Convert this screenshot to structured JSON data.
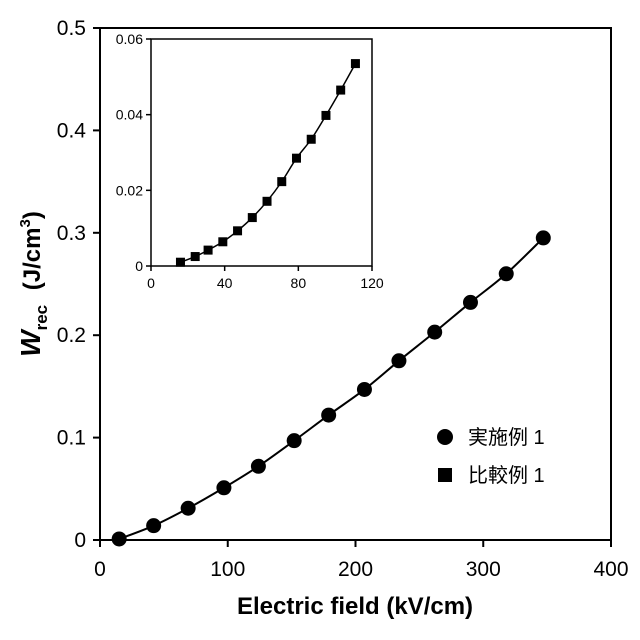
{
  "chart_data": [
    {
      "type": "scatter",
      "title": "",
      "xlabel": "Electric field   (kV/cm)",
      "ylabel": {
        "symbol": "W",
        "subscript": "rec",
        "unit_prefix": "(J/cm",
        "unit_power": "3",
        "unit_suffix": ")"
      },
      "xlim": [
        0,
        400
      ],
      "ylim": [
        0,
        0.5
      ],
      "x_ticks": [
        "0",
        "100",
        "200",
        "300",
        "400"
      ],
      "y_ticks": [
        "0",
        "0.1",
        "0.2",
        "0.3",
        "0.4",
        "0.5"
      ],
      "grid": false,
      "legend_position": "right",
      "series": [
        {
          "name": "実施例 1",
          "marker": "circle",
          "x": [
            15,
            42,
            69,
            97,
            124,
            152,
            179,
            207,
            234,
            262,
            290,
            318,
            347
          ],
          "y": [
            0.001,
            0.014,
            0.031,
            0.051,
            0.072,
            0.097,
            0.122,
            0.147,
            0.175,
            0.203,
            0.232,
            0.26,
            0.295
          ]
        },
        {
          "name": "比較例 1",
          "marker": "square",
          "x": [],
          "y": []
        }
      ],
      "line_color": "#000000"
    },
    {
      "type": "scatter",
      "title": "",
      "xlabel": "",
      "ylabel": "",
      "xlim": [
        0,
        120
      ],
      "ylim": [
        0,
        0.06
      ],
      "x_ticks": [
        "0",
        "40",
        "80",
        "120"
      ],
      "y_ticks": [
        "0",
        "0.02",
        "0.04",
        "0.06"
      ],
      "grid": false,
      "legend_position": "none",
      "series": [
        {
          "name": "比較例 1",
          "marker": "square",
          "x": [
            16,
            24,
            31,
            39,
            47,
            55,
            63,
            71,
            79,
            87,
            95,
            103,
            111
          ],
          "y": [
            0.001,
            0.0025,
            0.0042,
            0.0064,
            0.0093,
            0.0128,
            0.0171,
            0.0223,
            0.0285,
            0.0335,
            0.0398,
            0.0465,
            0.0535
          ]
        }
      ],
      "line_color": "#000000"
    }
  ]
}
